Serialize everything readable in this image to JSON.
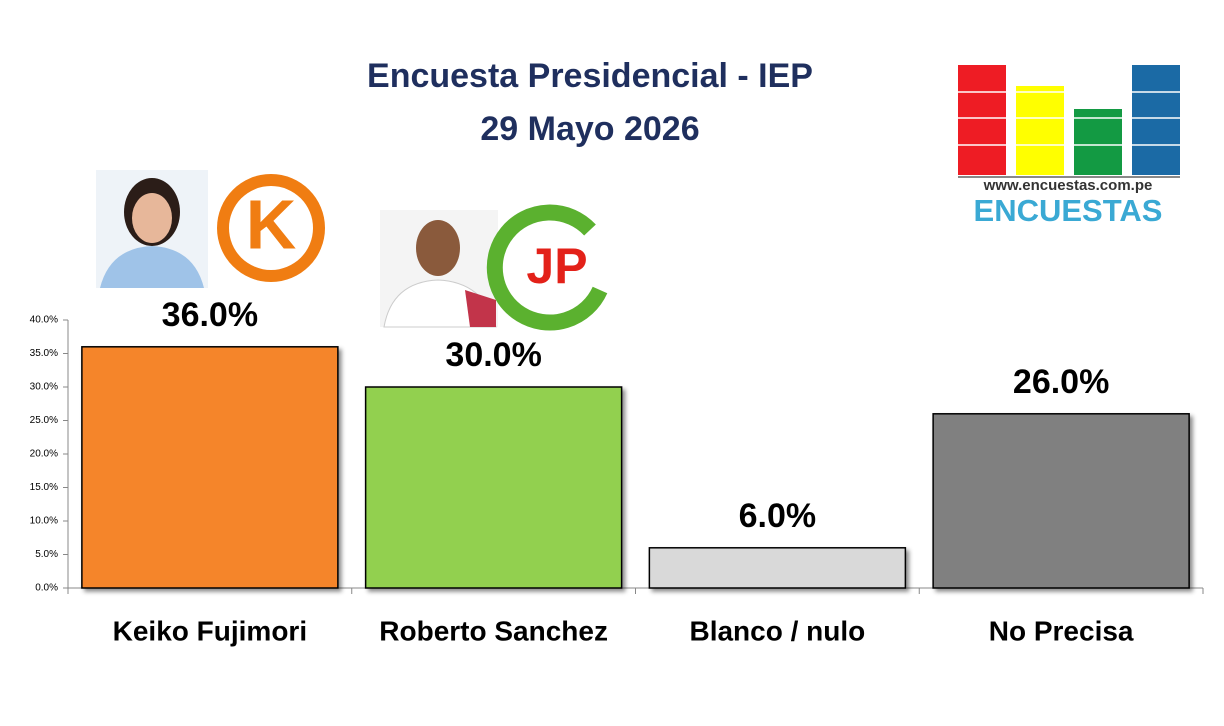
{
  "chart_data": {
    "type": "bar",
    "title": "Encuesta Presidencial - IEP",
    "subtitle": "29 Mayo 2026",
    "categories": [
      "Keiko Fujimori",
      "Roberto Sanchez",
      "Blanco / nulo",
      "No Precisa"
    ],
    "values": [
      36,
      30,
      6,
      26
    ],
    "value_labels": [
      "36.0%",
      "30.0%",
      "6.0%",
      "26.0%"
    ],
    "colors": [
      "#f5852b",
      "#92d050",
      "#d9d9d9",
      "#808080"
    ],
    "ylim": [
      0,
      40
    ],
    "yticks": [
      {
        "value": 0,
        "label": "0.0%"
      },
      {
        "value": 5,
        "label": "5.0%"
      },
      {
        "value": 10,
        "label": "10.0%"
      },
      {
        "value": 15,
        "label": "15.0%"
      },
      {
        "value": 20,
        "label": "20.0%"
      },
      {
        "value": 25,
        "label": "25.0%"
      },
      {
        "value": 30,
        "label": "30.0%"
      },
      {
        "value": 35,
        "label": "35.0%"
      },
      {
        "value": 40,
        "label": "40.0%"
      }
    ],
    "grid": false
  },
  "party_logos": [
    "K",
    "JP"
  ],
  "logo": {
    "url": "www.encuestas.com.pe",
    "name": "ENCUESTAS"
  }
}
